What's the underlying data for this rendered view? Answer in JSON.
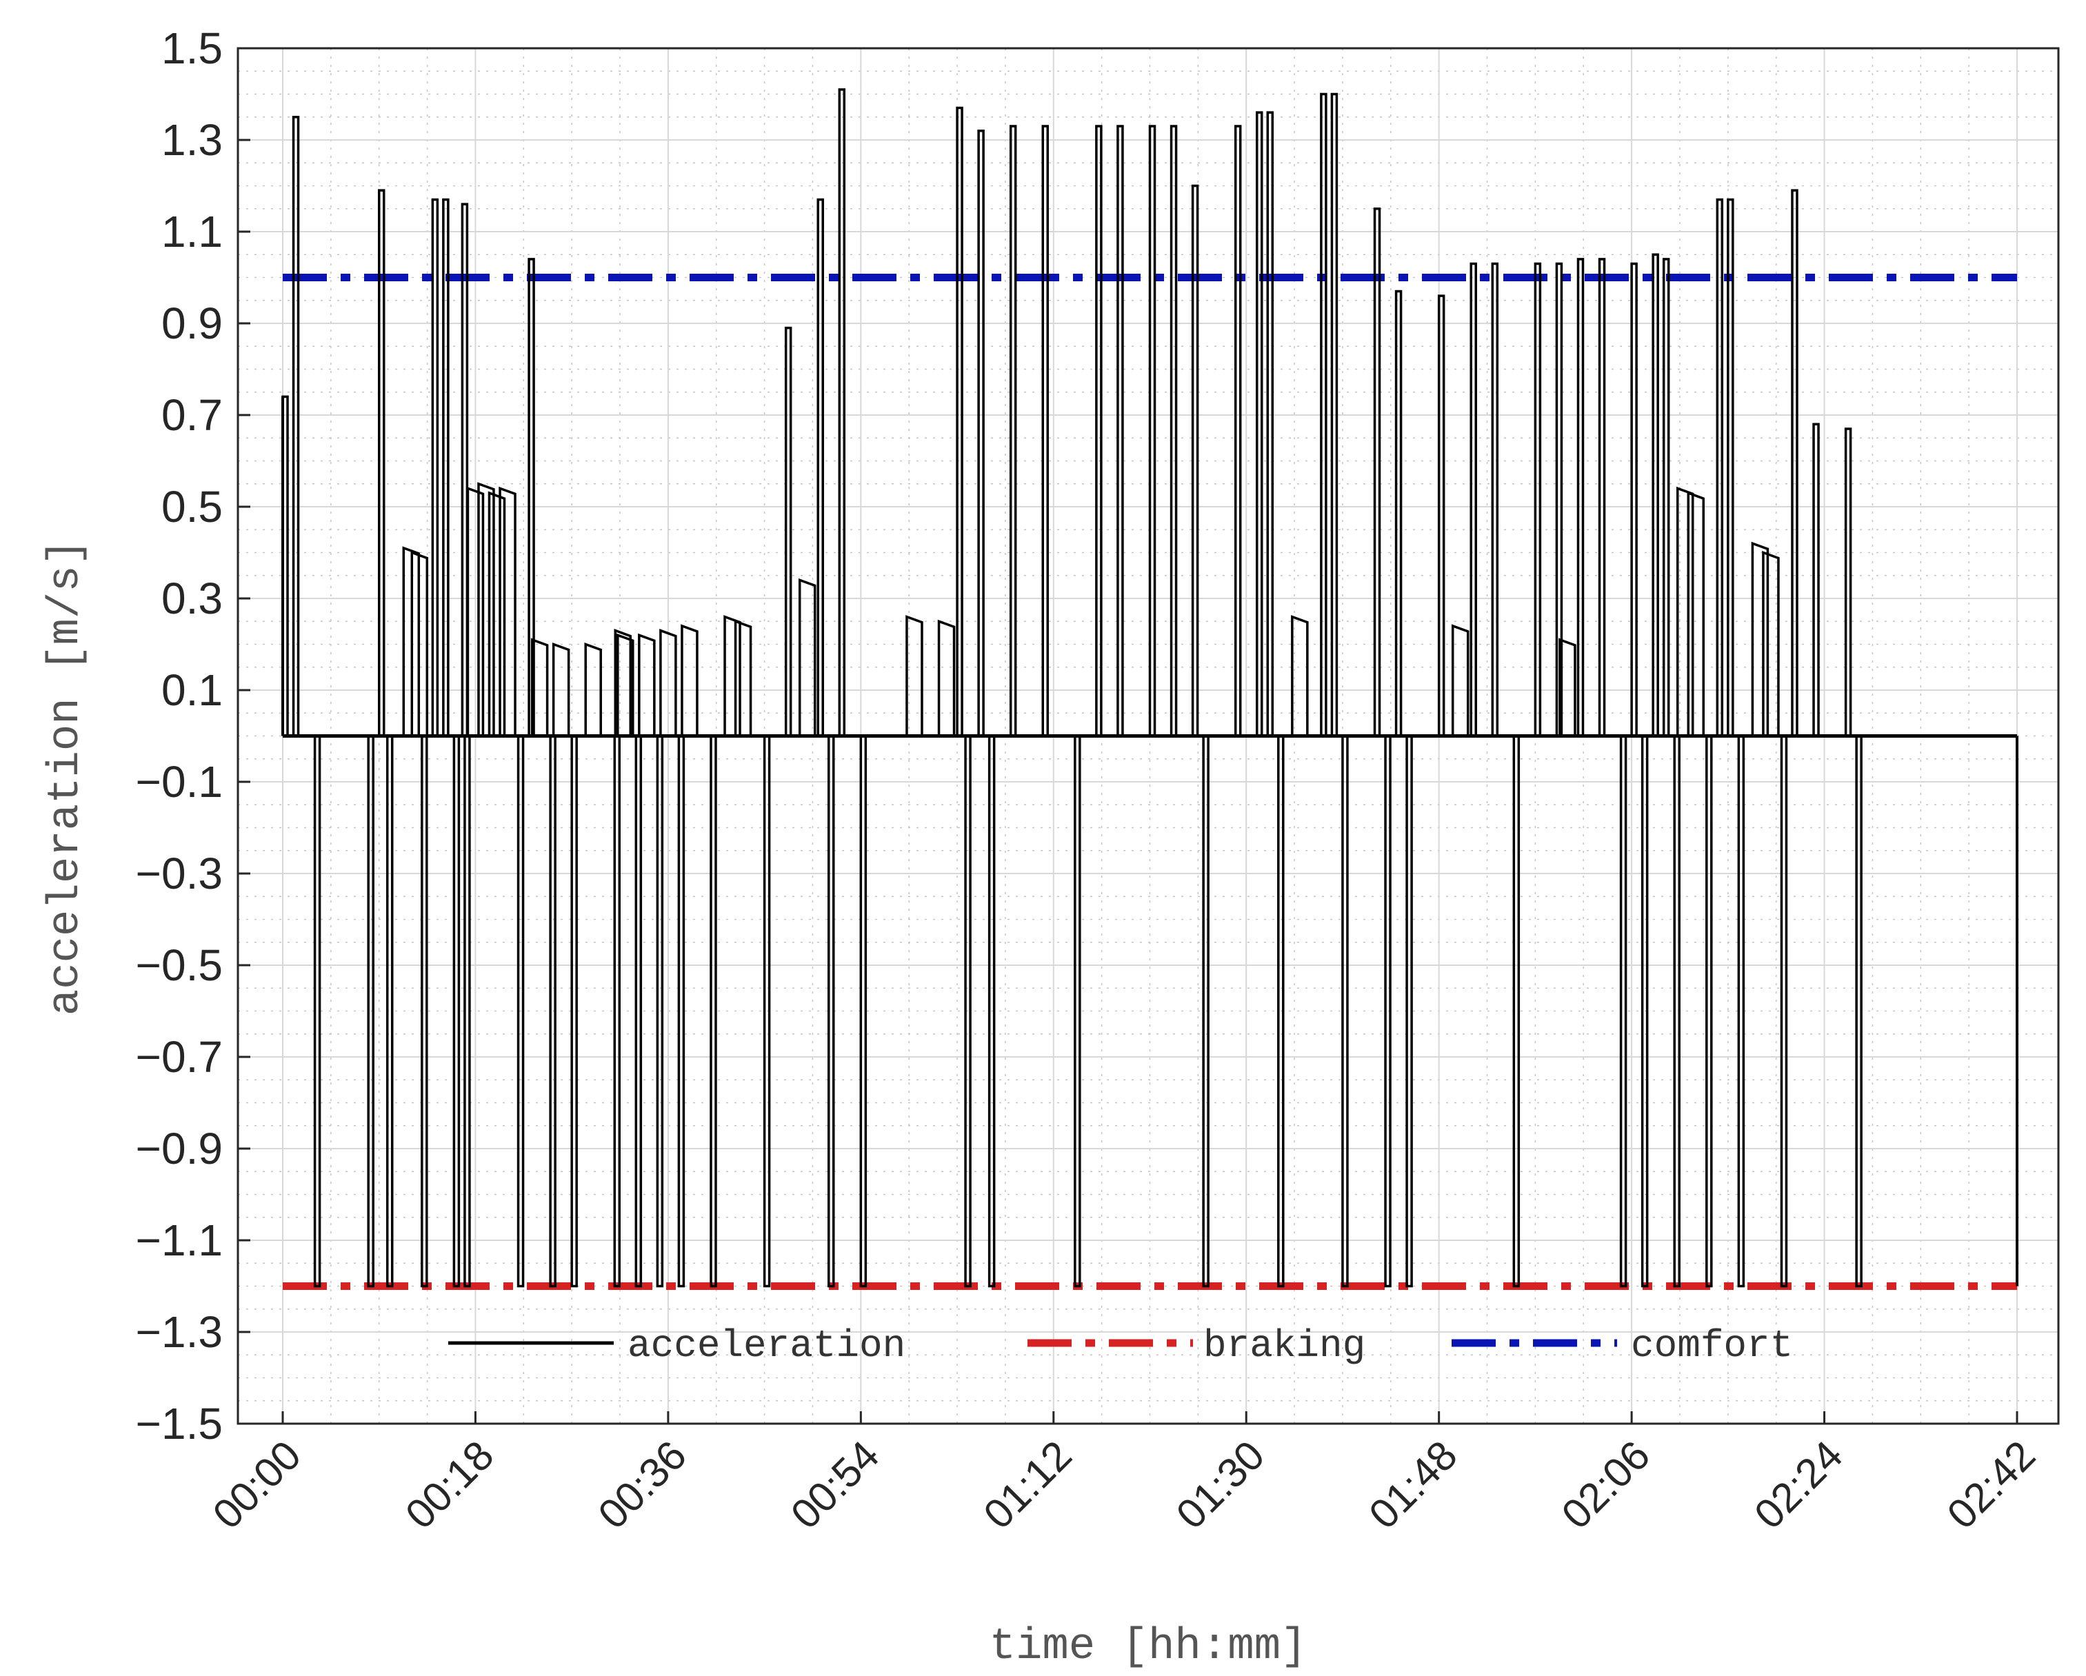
{
  "chart_data": {
    "type": "line",
    "title": "",
    "xlabel": "time [hh:mm]",
    "ylabel": "acceleration [m/s]",
    "xlim": [
      "00:00",
      "02:44"
    ],
    "ylim": [
      -1.5,
      1.5
    ],
    "x_ticks": [
      "00:00",
      "00:18",
      "00:36",
      "00:54",
      "01:12",
      "01:30",
      "01:48",
      "02:06",
      "02:24",
      "02:42"
    ],
    "y_ticks": [
      "1.5",
      "1.3",
      "1.1",
      "0.9",
      "0.7",
      "0.5",
      "0.3",
      "0.1",
      "−0.1",
      "−0.3",
      "−0.5",
      "−0.7",
      "−0.9",
      "−1.1",
      "−1.3",
      "−1.5"
    ],
    "grid": true,
    "minor_grid": true,
    "legend_position": "bottom-center",
    "colors": {
      "acceleration": "#000000",
      "braking": "#d62222",
      "comfort": "#0a14b4"
    },
    "series": [
      {
        "name": "acceleration",
        "style": "solid",
        "baseline": 0.0,
        "x": [
          "00:00",
          "00:01",
          "00:03",
          "00:08",
          "00:09",
          "00:09",
          "00:12",
          "00:12",
          "00:13",
          "00:14",
          "00:15",
          "00:16",
          "00:16",
          "00:17",
          "00:18",
          "00:19",
          "00:20",
          "00:21",
          "00:22",
          "00:23",
          "00:24",
          "00:25",
          "00:26",
          "00:27",
          "00:29",
          "00:31",
          "00:31",
          "00:32",
          "00:33",
          "00:34",
          "00:35",
          "00:36",
          "00:37",
          "00:38",
          "00:40",
          "00:42",
          "00:43",
          "00:45",
          "00:47",
          "00:49",
          "00:50",
          "00:51",
          "00:52",
          "00:54",
          "00:59",
          "01:02",
          "01:03",
          "01:03",
          "01:05",
          "01:06",
          "01:08",
          "01:11",
          "01:14",
          "01:16",
          "01:18",
          "01:21",
          "01:23",
          "01:25",
          "01:26",
          "01:29",
          "01:31",
          "01:32",
          "01:33",
          "01:35",
          "01:37",
          "01:38",
          "01:39",
          "01:42",
          "01:43",
          "01:44",
          "01:45",
          "01:48",
          "01:50",
          "01:51",
          "01:53",
          "01:55",
          "01:57",
          "01:59",
          "02:00",
          "02:01",
          "02:03",
          "02:05",
          "02:06",
          "02:07",
          "02:08",
          "02:09",
          "02:10",
          "02:11",
          "02:12",
          "02:13",
          "02:14",
          "02:15",
          "02:16",
          "02:18",
          "02:19",
          "02:20",
          "02:21",
          "02:23",
          "02:26",
          "02:27",
          "02:28",
          "02:30",
          "02:31",
          "02:32"
        ],
        "values": [
          0.74,
          1.35,
          -1.2,
          -1.2,
          1.19,
          -1.2,
          0.41,
          0.4,
          -1.2,
          1.17,
          1.17,
          -1.2,
          1.16,
          -1.2,
          0.54,
          0.55,
          0.53,
          0.54,
          -1.2,
          1.04,
          0.21,
          -1.2,
          0.2,
          -1.2,
          0.2,
          -1.2,
          0.23,
          0.22,
          -1.2,
          0.22,
          -1.2,
          0.23,
          -1.2,
          0.24,
          -1.2,
          0.26,
          0.25,
          -1.2,
          0.89,
          0.34,
          1.17,
          -1.2,
          1.41,
          -1.2,
          0.26,
          0.25,
          1.37,
          -1.2,
          1.32,
          -1.2,
          1.33,
          1.33,
          -1.2,
          1.33,
          1.33,
          1.33,
          1.33,
          1.2,
          -1.2,
          1.33,
          1.36,
          1.36,
          -1.2,
          0.26,
          1.4,
          1.4,
          -1.2,
          1.15,
          -1.2,
          0.97,
          -1.2,
          0.96,
          0.24,
          1.03,
          1.03,
          -1.2,
          1.03,
          1.03,
          0.21,
          1.04,
          1.04,
          -1.2,
          1.03,
          -1.2,
          1.05,
          1.04,
          -1.2,
          0.54,
          0.53,
          -1.2,
          1.17,
          1.17,
          -1.2,
          0.42,
          0.4,
          -1.2,
          1.19,
          0.68,
          0.67,
          -1.2,
          0.0,
          0.0,
          0.0,
          0.0
        ]
      },
      {
        "name": "braking",
        "style": "dash-dot",
        "values": [
          -1.2
        ]
      },
      {
        "name": "comfort",
        "style": "dash-dot",
        "values": [
          1.0
        ]
      }
    ]
  }
}
